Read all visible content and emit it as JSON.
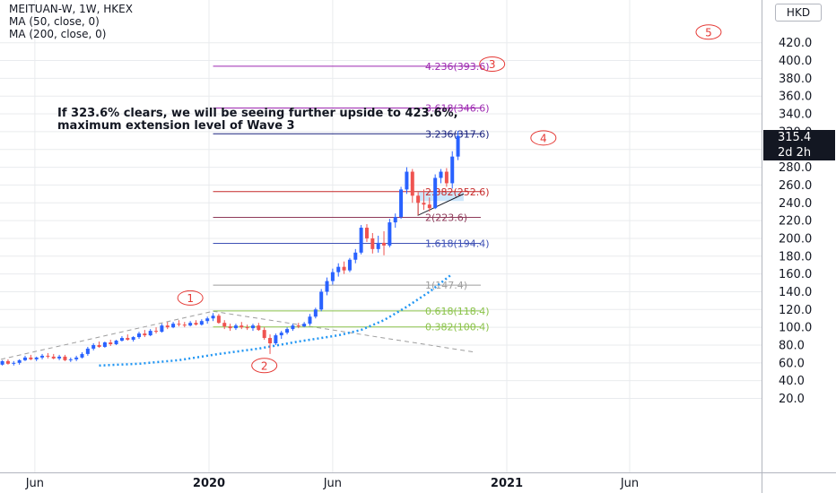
{
  "header": {
    "symbol_line": "MEITUAN-W, 1W, HKEX",
    "indicator_1": "MA (50, close, 0)",
    "indicator_2": "MA (200, close, 0)",
    "currency": "HKD"
  },
  "price_tag": {
    "price": "315.4",
    "countdown": "2d 2h",
    "value": 315.4
  },
  "annotation": {
    "line1": "If 323.6% clears, we will be seeing further upside to 423.6%,",
    "line2": "maximum extension level of Wave 3"
  },
  "colors": {
    "up": "#2962ff",
    "down": "#ef5350",
    "ma50": "#2196f3",
    "wave": "#e53935",
    "trendline": "#9e9e9e",
    "axis_text": "#131722",
    "grid": "#e9ebee"
  },
  "chart_data": {
    "type": "candlestick",
    "ylim": [
      15,
      435
    ],
    "y_ticks": [
      20,
      40,
      60,
      80,
      100,
      120,
      140,
      160,
      180,
      200,
      220,
      240,
      260,
      280,
      300,
      320,
      340,
      360,
      380,
      400,
      420
    ],
    "y_tick_labels": [
      "20.0",
      "40.0",
      "60.0",
      "80.0",
      "100.0",
      "120.0",
      "140.0",
      "160.0",
      "180.0",
      "200.0",
      "220.0",
      "240.0",
      "260.0",
      "280.0",
      "300.0",
      "320.0",
      "340.0",
      "360.0",
      "380.0",
      "400.0",
      "420.0"
    ],
    "x_labels": [
      {
        "label": "Jun",
        "date": "2019-06-01",
        "bold": false
      },
      {
        "label": "2020",
        "date": "2020-01-01",
        "bold": true
      },
      {
        "label": "Jun",
        "date": "2020-06-01",
        "bold": false
      },
      {
        "label": "2021",
        "date": "2021-01-01",
        "bold": true
      },
      {
        "label": "Jun",
        "date": "2021-06-01",
        "bold": false
      }
    ],
    "candles": [
      {
        "date": "2019-04-01",
        "o": 54,
        "h": 58,
        "l": 52,
        "c": 57
      },
      {
        "date": "2019-04-08",
        "o": 57,
        "h": 60,
        "l": 54,
        "c": 55
      },
      {
        "date": "2019-04-15",
        "o": 55,
        "h": 59,
        "l": 54,
        "c": 58
      },
      {
        "date": "2019-04-22",
        "o": 58,
        "h": 63,
        "l": 57,
        "c": 62
      },
      {
        "date": "2019-04-29",
        "o": 62,
        "h": 64,
        "l": 58,
        "c": 59
      },
      {
        "date": "2019-05-06",
        "o": 59,
        "h": 62,
        "l": 57,
        "c": 60
      },
      {
        "date": "2019-05-13",
        "o": 60,
        "h": 64,
        "l": 58,
        "c": 63
      },
      {
        "date": "2019-05-20",
        "o": 63,
        "h": 68,
        "l": 62,
        "c": 66
      },
      {
        "date": "2019-05-27",
        "o": 66,
        "h": 69,
        "l": 63,
        "c": 64
      },
      {
        "date": "2019-06-03",
        "o": 64,
        "h": 67,
        "l": 62,
        "c": 66
      },
      {
        "date": "2019-06-10",
        "o": 66,
        "h": 70,
        "l": 64,
        "c": 68
      },
      {
        "date": "2019-06-17",
        "o": 68,
        "h": 71,
        "l": 65,
        "c": 67
      },
      {
        "date": "2019-06-24",
        "o": 67,
        "h": 70,
        "l": 64,
        "c": 65
      },
      {
        "date": "2019-07-01",
        "o": 65,
        "h": 69,
        "l": 63,
        "c": 67
      },
      {
        "date": "2019-07-08",
        "o": 67,
        "h": 69,
        "l": 62,
        "c": 63
      },
      {
        "date": "2019-07-15",
        "o": 63,
        "h": 66,
        "l": 61,
        "c": 64
      },
      {
        "date": "2019-07-22",
        "o": 64,
        "h": 68,
        "l": 62,
        "c": 66
      },
      {
        "date": "2019-07-29",
        "o": 66,
        "h": 72,
        "l": 65,
        "c": 70
      },
      {
        "date": "2019-08-05",
        "o": 70,
        "h": 78,
        "l": 68,
        "c": 76
      },
      {
        "date": "2019-08-12",
        "o": 76,
        "h": 82,
        "l": 74,
        "c": 80
      },
      {
        "date": "2019-08-19",
        "o": 80,
        "h": 84,
        "l": 77,
        "c": 78
      },
      {
        "date": "2019-08-26",
        "o": 78,
        "h": 84,
        "l": 77,
        "c": 83
      },
      {
        "date": "2019-09-02",
        "o": 83,
        "h": 86,
        "l": 79,
        "c": 81
      },
      {
        "date": "2019-09-09",
        "o": 81,
        "h": 86,
        "l": 80,
        "c": 85
      },
      {
        "date": "2019-09-16",
        "o": 85,
        "h": 90,
        "l": 84,
        "c": 88
      },
      {
        "date": "2019-09-23",
        "o": 88,
        "h": 92,
        "l": 85,
        "c": 86
      },
      {
        "date": "2019-09-30",
        "o": 86,
        "h": 90,
        "l": 84,
        "c": 89
      },
      {
        "date": "2019-10-07",
        "o": 89,
        "h": 95,
        "l": 87,
        "c": 93
      },
      {
        "date": "2019-10-14",
        "o": 93,
        "h": 97,
        "l": 89,
        "c": 91
      },
      {
        "date": "2019-10-21",
        "o": 91,
        "h": 98,
        "l": 90,
        "c": 96
      },
      {
        "date": "2019-10-28",
        "o": 96,
        "h": 100,
        "l": 93,
        "c": 95
      },
      {
        "date": "2019-11-04",
        "o": 95,
        "h": 104,
        "l": 94,
        "c": 102
      },
      {
        "date": "2019-11-11",
        "o": 102,
        "h": 106,
        "l": 98,
        "c": 100
      },
      {
        "date": "2019-11-18",
        "o": 100,
        "h": 106,
        "l": 99,
        "c": 104
      },
      {
        "date": "2019-11-25",
        "o": 104,
        "h": 108,
        "l": 101,
        "c": 103
      },
      {
        "date": "2019-12-02",
        "o": 103,
        "h": 106,
        "l": 100,
        "c": 102
      },
      {
        "date": "2019-12-09",
        "o": 102,
        "h": 107,
        "l": 101,
        "c": 105
      },
      {
        "date": "2019-12-16",
        "o": 105,
        "h": 108,
        "l": 102,
        "c": 103
      },
      {
        "date": "2019-12-23",
        "o": 103,
        "h": 109,
        "l": 102,
        "c": 107
      },
      {
        "date": "2019-12-30",
        "o": 107,
        "h": 112,
        "l": 104,
        "c": 110
      },
      {
        "date": "2020-01-06",
        "o": 110,
        "h": 116,
        "l": 107,
        "c": 113
      },
      {
        "date": "2020-01-13",
        "o": 113,
        "h": 115,
        "l": 104,
        "c": 105
      },
      {
        "date": "2020-01-20",
        "o": 105,
        "h": 108,
        "l": 98,
        "c": 101
      },
      {
        "date": "2020-01-27",
        "o": 101,
        "h": 104,
        "l": 96,
        "c": 99
      },
      {
        "date": "2020-02-03",
        "o": 99,
        "h": 104,
        "l": 97,
        "c": 102
      },
      {
        "date": "2020-02-10",
        "o": 102,
        "h": 106,
        "l": 98,
        "c": 100
      },
      {
        "date": "2020-02-17",
        "o": 100,
        "h": 103,
        "l": 97,
        "c": 99
      },
      {
        "date": "2020-02-24",
        "o": 99,
        "h": 104,
        "l": 96,
        "c": 102
      },
      {
        "date": "2020-03-02",
        "o": 102,
        "h": 105,
        "l": 96,
        "c": 97
      },
      {
        "date": "2020-03-09",
        "o": 97,
        "h": 100,
        "l": 86,
        "c": 88
      },
      {
        "date": "2020-03-16",
        "o": 88,
        "h": 92,
        "l": 70,
        "c": 82
      },
      {
        "date": "2020-03-23",
        "o": 82,
        "h": 93,
        "l": 80,
        "c": 91
      },
      {
        "date": "2020-03-30",
        "o": 91,
        "h": 96,
        "l": 87,
        "c": 94
      },
      {
        "date": "2020-04-06",
        "o": 94,
        "h": 100,
        "l": 92,
        "c": 98
      },
      {
        "date": "2020-04-13",
        "o": 98,
        "h": 104,
        "l": 96,
        "c": 102
      },
      {
        "date": "2020-04-20",
        "o": 102,
        "h": 105,
        "l": 99,
        "c": 101
      },
      {
        "date": "2020-04-27",
        "o": 101,
        "h": 106,
        "l": 100,
        "c": 104
      },
      {
        "date": "2020-05-04",
        "o": 104,
        "h": 115,
        "l": 102,
        "c": 112
      },
      {
        "date": "2020-05-11",
        "o": 112,
        "h": 122,
        "l": 110,
        "c": 120
      },
      {
        "date": "2020-05-18",
        "o": 120,
        "h": 143,
        "l": 118,
        "c": 140
      },
      {
        "date": "2020-05-25",
        "o": 140,
        "h": 156,
        "l": 136,
        "c": 152
      },
      {
        "date": "2020-06-01",
        "o": 152,
        "h": 166,
        "l": 148,
        "c": 162
      },
      {
        "date": "2020-06-08",
        "o": 162,
        "h": 172,
        "l": 157,
        "c": 168
      },
      {
        "date": "2020-06-15",
        "o": 168,
        "h": 174,
        "l": 160,
        "c": 164
      },
      {
        "date": "2020-06-22",
        "o": 164,
        "h": 178,
        "l": 162,
        "c": 176
      },
      {
        "date": "2020-06-29",
        "o": 176,
        "h": 188,
        "l": 172,
        "c": 184
      },
      {
        "date": "2020-07-06",
        "o": 184,
        "h": 215,
        "l": 182,
        "c": 212
      },
      {
        "date": "2020-07-13",
        "o": 212,
        "h": 216,
        "l": 196,
        "c": 200
      },
      {
        "date": "2020-07-20",
        "o": 200,
        "h": 206,
        "l": 183,
        "c": 188
      },
      {
        "date": "2020-07-27",
        "o": 188,
        "h": 203,
        "l": 184,
        "c": 195
      },
      {
        "date": "2020-08-03",
        "o": 195,
        "h": 208,
        "l": 181,
        "c": 192
      },
      {
        "date": "2020-08-10",
        "o": 192,
        "h": 222,
        "l": 190,
        "c": 218
      },
      {
        "date": "2020-08-17",
        "o": 218,
        "h": 228,
        "l": 212,
        "c": 224
      },
      {
        "date": "2020-08-24",
        "o": 224,
        "h": 258,
        "l": 222,
        "c": 255
      },
      {
        "date": "2020-08-31",
        "o": 255,
        "h": 280,
        "l": 250,
        "c": 275
      },
      {
        "date": "2020-09-07",
        "o": 275,
        "h": 278,
        "l": 240,
        "c": 248
      },
      {
        "date": "2020-09-14",
        "o": 248,
        "h": 252,
        "l": 226,
        "c": 240
      },
      {
        "date": "2020-09-21",
        "o": 240,
        "h": 255,
        "l": 232,
        "c": 238
      },
      {
        "date": "2020-09-28",
        "o": 238,
        "h": 246,
        "l": 230,
        "c": 234
      },
      {
        "date": "2020-10-05",
        "o": 234,
        "h": 272,
        "l": 233,
        "c": 268
      },
      {
        "date": "2020-10-12",
        "o": 268,
        "h": 278,
        "l": 262,
        "c": 275
      },
      {
        "date": "2020-10-19",
        "o": 275,
        "h": 279,
        "l": 258,
        "c": 262
      },
      {
        "date": "2020-10-26",
        "o": 262,
        "h": 298,
        "l": 256,
        "c": 292
      },
      {
        "date": "2020-11-02",
        "o": 292,
        "h": 321,
        "l": 288,
        "c": 315.4
      }
    ],
    "ma50": [
      {
        "date": "2019-08-19",
        "v": 57
      },
      {
        "date": "2019-10-07",
        "v": 59
      },
      {
        "date": "2019-11-25",
        "v": 63
      },
      {
        "date": "2020-01-13",
        "v": 70
      },
      {
        "date": "2020-03-02",
        "v": 76
      },
      {
        "date": "2020-04-20",
        "v": 84
      },
      {
        "date": "2020-06-08",
        "v": 91
      },
      {
        "date": "2020-07-06",
        "v": 97
      },
      {
        "date": "2020-08-03",
        "v": 108
      },
      {
        "date": "2020-08-31",
        "v": 123
      },
      {
        "date": "2020-09-28",
        "v": 140
      },
      {
        "date": "2020-10-26",
        "v": 160
      }
    ],
    "fib_levels": [
      {
        "label": "0.382(100.4)",
        "value": 100.4,
        "color": "#8bc34a",
        "x_start": "2020-01-06"
      },
      {
        "label": "0.618(118.4)",
        "value": 118.4,
        "color": "#8bc34a",
        "x_start": "2020-01-06"
      },
      {
        "label": "1(147.4)",
        "value": 147.4,
        "color": "#9e9e9e",
        "x_start": "2020-01-06"
      },
      {
        "label": "1.618(194.4)",
        "value": 194.4,
        "color": "#3f51b5",
        "x_start": "2020-01-06"
      },
      {
        "label": "2(223.6)",
        "value": 223.6,
        "color": "#8e3a59",
        "x_start": "2020-01-06"
      },
      {
        "label": "2.382(252.6)",
        "value": 252.6,
        "color": "#c62828",
        "x_start": "2020-01-06"
      },
      {
        "label": "3.236(317.6)",
        "value": 317.6,
        "color": "#1a237e",
        "x_start": "2020-01-06"
      },
      {
        "label": "3.618(346.6)",
        "value": 346.6,
        "color": "#9c27b0",
        "x_start": "2020-01-06"
      },
      {
        "label": "4.236(393.6)",
        "value": 393.6,
        "color": "#9c27b0",
        "x_start": "2020-01-06"
      }
    ],
    "fib_x_end": "2020-11-30",
    "fib_zone": {
      "x1": "2020-09-14",
      "x2": "2020-11-09",
      "y1": 242,
      "y2": 252.6
    },
    "triangle": {
      "p1": {
        "date": "2020-09-14",
        "v": 226
      },
      "p2": {
        "date": "2020-11-09",
        "v": 250
      },
      "apex": {
        "date": "2020-09-14",
        "v": 248
      }
    },
    "trendlines": [
      {
        "from": {
          "date": "2019-04-01",
          "v": 60
        },
        "to": {
          "date": "2020-01-06",
          "v": 118
        },
        "style": "dashed"
      },
      {
        "from": {
          "date": "2020-01-06",
          "v": 118
        },
        "to": {
          "date": "2020-11-23",
          "v": 72
        },
        "style": "dashed"
      }
    ],
    "waves": [
      {
        "label": "1",
        "date": "2019-12-09",
        "v": 133
      },
      {
        "label": "2",
        "date": "2020-03-09",
        "v": 57
      },
      {
        "label": "3",
        "date": "2020-12-14",
        "v": 396
      },
      {
        "label": "4",
        "date": "2021-02-15",
        "v": 313
      },
      {
        "label": "5",
        "date": "2021-09-06",
        "v": 432
      }
    ]
  }
}
